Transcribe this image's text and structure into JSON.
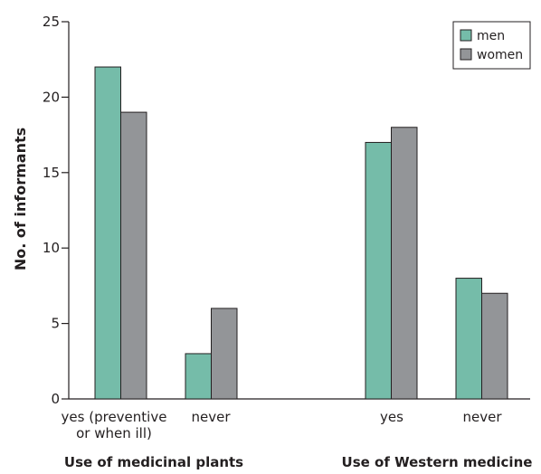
{
  "chart_data": {
    "type": "bar",
    "ylabel": "No. of informants",
    "ylim": [
      0,
      25
    ],
    "yticks": [
      0,
      5,
      10,
      15,
      20,
      25
    ],
    "grid": false,
    "legend_position": "top-right",
    "categories": [
      {
        "label_lines": [
          "yes (preventive",
          "or when ill)"
        ],
        "group": 0
      },
      {
        "label_lines": [
          "never"
        ],
        "group": 0
      },
      {
        "label_lines": [
          "yes"
        ],
        "group": 1
      },
      {
        "label_lines": [
          "never"
        ],
        "group": 1
      }
    ],
    "groups": [
      "Use of medicinal plants",
      "Use of Western medicine"
    ],
    "series": [
      {
        "name": "men",
        "color": "#75bca9",
        "values": [
          22,
          3,
          17,
          8
        ]
      },
      {
        "name": "women",
        "color": "#939598",
        "values": [
          19,
          6,
          18,
          7
        ]
      }
    ]
  }
}
